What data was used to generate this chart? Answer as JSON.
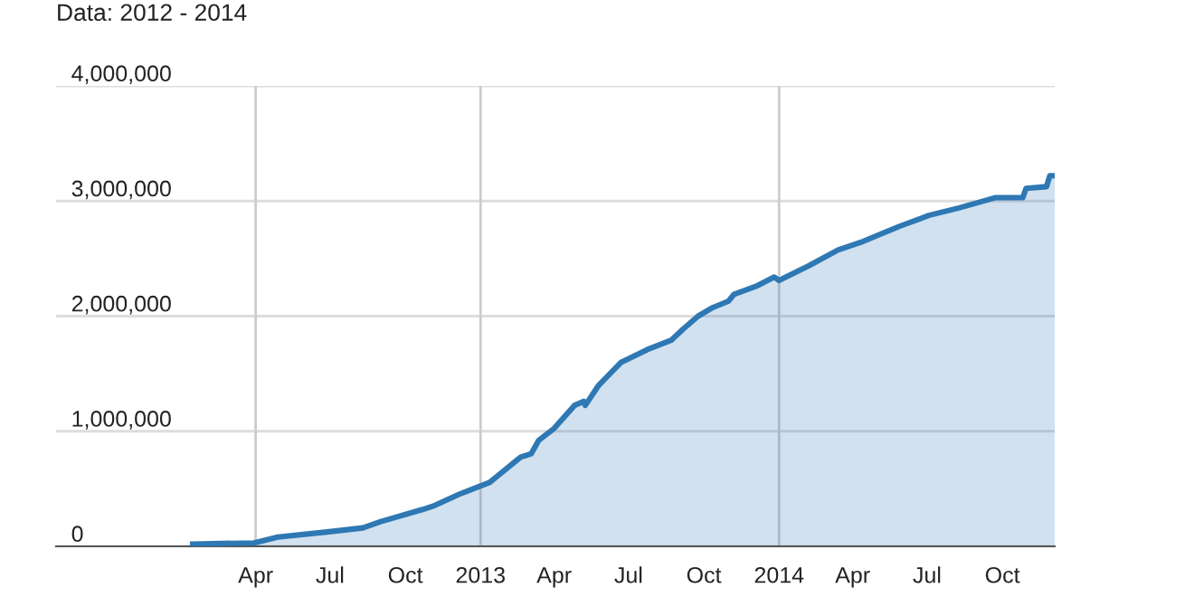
{
  "chart_data": {
    "type": "area",
    "title": "Data: 2012 - 2014",
    "x": [
      "2012-01-15",
      "2012-03-30",
      "2012-04-28",
      "2012-06-27",
      "2012-08-10",
      "2012-09-01",
      "2012-10-22",
      "2012-11-06",
      "2012-12-05",
      "2013-01-12",
      "2013-01-30",
      "2013-02-19",
      "2013-03-04",
      "2013-03-13",
      "2013-04-01",
      "2013-04-26",
      "2013-05-07",
      "2013-05-09",
      "2013-05-25",
      "2013-06-22",
      "2013-07-24",
      "2013-08-22",
      "2013-09-06",
      "2013-09-24",
      "2013-10-12",
      "2013-10-31",
      "2013-11-07",
      "2013-12-04",
      "2013-12-26",
      "2014-01-01",
      "2014-02-07",
      "2014-03-14",
      "2014-04-14",
      "2014-05-28",
      "2014-07-03",
      "2014-08-09",
      "2014-09-23",
      "2014-10-26",
      "2014-10-30",
      "2014-11-24",
      "2014-11-28",
      "2014-12-04"
    ],
    "series": [
      {
        "color": "#2e78b4",
        "values": [
          20000,
          30000,
          80000,
          125000,
          160000,
          215000,
          320000,
          355000,
          450000,
          555000,
          660000,
          775000,
          805000,
          920000,
          1025000,
          1225000,
          1260000,
          1225000,
          1395000,
          1600000,
          1710000,
          1790000,
          1890000,
          2000000,
          2075000,
          2130000,
          2190000,
          2260000,
          2340000,
          2310000,
          2440000,
          2575000,
          2650000,
          2780000,
          2875000,
          2940000,
          3030000,
          3030000,
          3110000,
          3125000,
          3220000,
          3220000
        ]
      }
    ],
    "xlim": [
      "2011-08-01",
      "2014-12-04"
    ],
    "xticks": [
      {
        "value": "2012-04-01",
        "label": "Apr"
      },
      {
        "value": "2012-07-01",
        "label": "Jul"
      },
      {
        "value": "2012-10-01",
        "label": "Oct"
      },
      {
        "value": "2013-01-01",
        "label": "2013"
      },
      {
        "value": "2013-04-01",
        "label": "Apr"
      },
      {
        "value": "2013-07-01",
        "label": "Jul"
      },
      {
        "value": "2013-10-01",
        "label": "Oct"
      },
      {
        "value": "2014-01-01",
        "label": "2014"
      },
      {
        "value": "2014-04-01",
        "label": "Apr"
      },
      {
        "value": "2014-07-01",
        "label": "Jul"
      },
      {
        "value": "2014-10-01",
        "label": "Oct"
      }
    ],
    "ylim": [
      0,
      4000000
    ],
    "yticks": [
      {
        "value": 0,
        "label": "0"
      },
      {
        "value": 1000000,
        "label": "1,000,000"
      },
      {
        "value": 2000000,
        "label": "2,000,000"
      },
      {
        "value": 3000000,
        "label": "3,000,000"
      },
      {
        "value": 4000000,
        "label": "4,000,000"
      }
    ],
    "grid": "y",
    "legend": false,
    "line_style": "solid",
    "marker": "none",
    "ref_lines": [
      {
        "axis": "x",
        "value": "2012-04-01",
        "color": "#cccccc"
      },
      {
        "axis": "x",
        "value": "2013-01-01",
        "color": "#cccccc"
      },
      {
        "axis": "x",
        "value": "2014-01-01",
        "color": "#cccccc"
      }
    ]
  }
}
